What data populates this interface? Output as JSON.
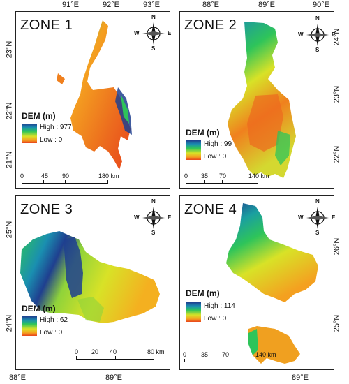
{
  "legend": {
    "title": "DEM (m)"
  },
  "compass": {
    "n": "N",
    "s": "S",
    "e": "E",
    "w": "W"
  },
  "zone1": {
    "title": "ZONE 1",
    "top_ticks": [
      "91°E",
      "92°E",
      "93°E"
    ],
    "left_ticks": [
      "23°N",
      "22°N",
      "21°N"
    ],
    "high": "High : 977",
    "low": "Low : 0",
    "scale": [
      "0",
      "45",
      "90",
      "180 km"
    ]
  },
  "zone2": {
    "title": "ZONE 2",
    "top_ticks": [
      "88°E",
      "89°E",
      "90°E"
    ],
    "right_ticks": [
      "24°N",
      "23°N",
      "22°N"
    ],
    "high": "High : 99",
    "low": "Low : 0",
    "scale": [
      "0",
      "35",
      "70",
      "140 km"
    ]
  },
  "zone3": {
    "title": "ZONE 3",
    "left_ticks": [
      "25°N",
      "24°N"
    ],
    "bottom_ticks": [
      "88°E",
      "89°E"
    ],
    "high": "High : 62",
    "low": "Low : 0",
    "scale": [
      "0",
      "20",
      "40",
      "80 km"
    ]
  },
  "zone4": {
    "title": "ZONE 4",
    "right_ticks": [
      "26°N",
      "25°N"
    ],
    "bottom_ticks": [
      "89°E"
    ],
    "high": "High : 114",
    "low": "Low : 0",
    "scale": [
      "0",
      "35",
      "70",
      "140 km"
    ]
  }
}
